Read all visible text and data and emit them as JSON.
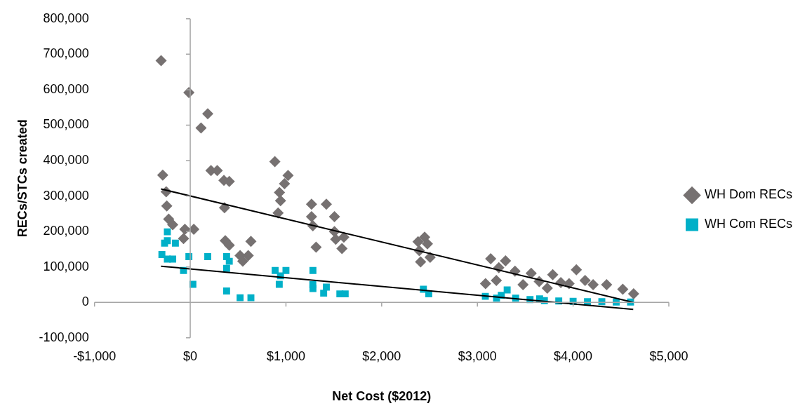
{
  "chart_data": {
    "type": "scatter",
    "xlabel": "Net Cost ($2012)",
    "ylabel": "RECs/STCs created",
    "xlim": [
      -1000,
      5000
    ],
    "xticks": [
      {
        "value": -1000,
        "label": "-$1,000"
      },
      {
        "value": 0,
        "label": "$0"
      },
      {
        "value": 1000,
        "label": "$1,000"
      },
      {
        "value": 2000,
        "label": "$2,000"
      },
      {
        "value": 3000,
        "label": "$3,000"
      },
      {
        "value": 4000,
        "label": "$4,000"
      },
      {
        "value": 5000,
        "label": "$5,000"
      }
    ],
    "ylim": [
      -100000,
      800000
    ],
    "yticks": [
      {
        "value": -100000,
        "label": "-100,000"
      },
      {
        "value": 0,
        "label": "0"
      },
      {
        "value": 100000,
        "label": "100,000"
      },
      {
        "value": 200000,
        "label": "200,000"
      },
      {
        "value": 300000,
        "label": "300,000"
      },
      {
        "value": 400000,
        "label": "400,000"
      },
      {
        "value": 500000,
        "label": "500,000"
      },
      {
        "value": 600000,
        "label": "600,000"
      },
      {
        "value": 700000,
        "label": "700,000"
      },
      {
        "value": 800000,
        "label": "800,000"
      }
    ],
    "legend": "right",
    "series": [
      {
        "name": "WH Dom RECs",
        "color": "#767171",
        "marker": "diamond",
        "x": [
          -304,
          -14,
          183,
          113,
          -287,
          217,
          282,
          352,
          408,
          -251,
          -245,
          -225,
          -183,
          -56,
          37,
          -70,
          358,
          366,
          408,
          634,
          521,
          606,
          549,
          884,
          1022,
          985,
          932,
          943,
          918,
          1267,
          1422,
          1507,
          1267,
          1281,
          1507,
          1605,
          1520,
          1585,
          1315,
          2449,
          2478,
          2506,
          2407,
          2393,
          2380,
          3139,
          3294,
          3224,
          3393,
          3085,
          3198,
          3562,
          3646,
          3787,
          3872,
          4034,
          3958,
          4125,
          4209,
          4350,
          4519,
          4632,
          3477,
          3730
        ],
        "values": [
          682000,
          592000,
          532000,
          492000,
          359000,
          372000,
          372000,
          344000,
          341000,
          312000,
          272000,
          235000,
          219000,
          206000,
          206000,
          180000,
          267000,
          174000,
          161000,
          172000,
          132000,
          132000,
          116000,
          397000,
          358000,
          335000,
          310000,
          287000,
          252000,
          277000,
          277000,
          242000,
          242000,
          216000,
          200000,
          184000,
          178000,
          152000,
          156000,
          184000,
          165000,
          127000,
          114000,
          146000,
          171000,
          123000,
          117000,
          98000,
          88000,
          53000,
          62000,
          82000,
          59000,
          78000,
          56000,
          92000,
          53000,
          62000,
          50000,
          50000,
          37000,
          24000,
          50000,
          40000
        ]
      },
      {
        "name": "WH Com RECs",
        "color": "#00b0c8",
        "marker": "square",
        "x": [
          -239,
          -239,
          -296,
          -239,
          -268,
          -155,
          -183,
          -70,
          28,
          -14,
          183,
          380,
          408,
          380,
          380,
          521,
          634,
          887,
          1000,
          930,
          943,
          1282,
          1282,
          1394,
          1281,
          1422,
          1563,
          1619,
          2436,
          2492,
          3083,
          3311,
          3200,
          3400,
          3550,
          3700,
          3850,
          4000,
          4150,
          4300,
          4450,
          4600,
          3650,
          3250
        ],
        "values": [
          199000,
          174000,
          135000,
          122000,
          167000,
          167000,
          122000,
          90000,
          51000,
          129000,
          129000,
          129000,
          116000,
          96000,
          32000,
          13000,
          13000,
          90000,
          90000,
          51000,
          75000,
          90000,
          39000,
          26000,
          50000,
          43000,
          24000,
          24000,
          37000,
          24000,
          17000,
          35000,
          12000,
          12000,
          8000,
          5000,
          4000,
          3000,
          2000,
          2000,
          1000,
          1000,
          10000,
          20000
        ]
      },
      {
        "type": "line",
        "color": "#000000",
        "marker": "none",
        "x": [
          -305,
          4628
        ],
        "values": [
          320000,
          0
        ]
      },
      {
        "type": "line",
        "color": "#000000",
        "marker": "none",
        "x": [
          -305,
          4628
        ],
        "values": [
          102000,
          -20000
        ]
      }
    ]
  }
}
